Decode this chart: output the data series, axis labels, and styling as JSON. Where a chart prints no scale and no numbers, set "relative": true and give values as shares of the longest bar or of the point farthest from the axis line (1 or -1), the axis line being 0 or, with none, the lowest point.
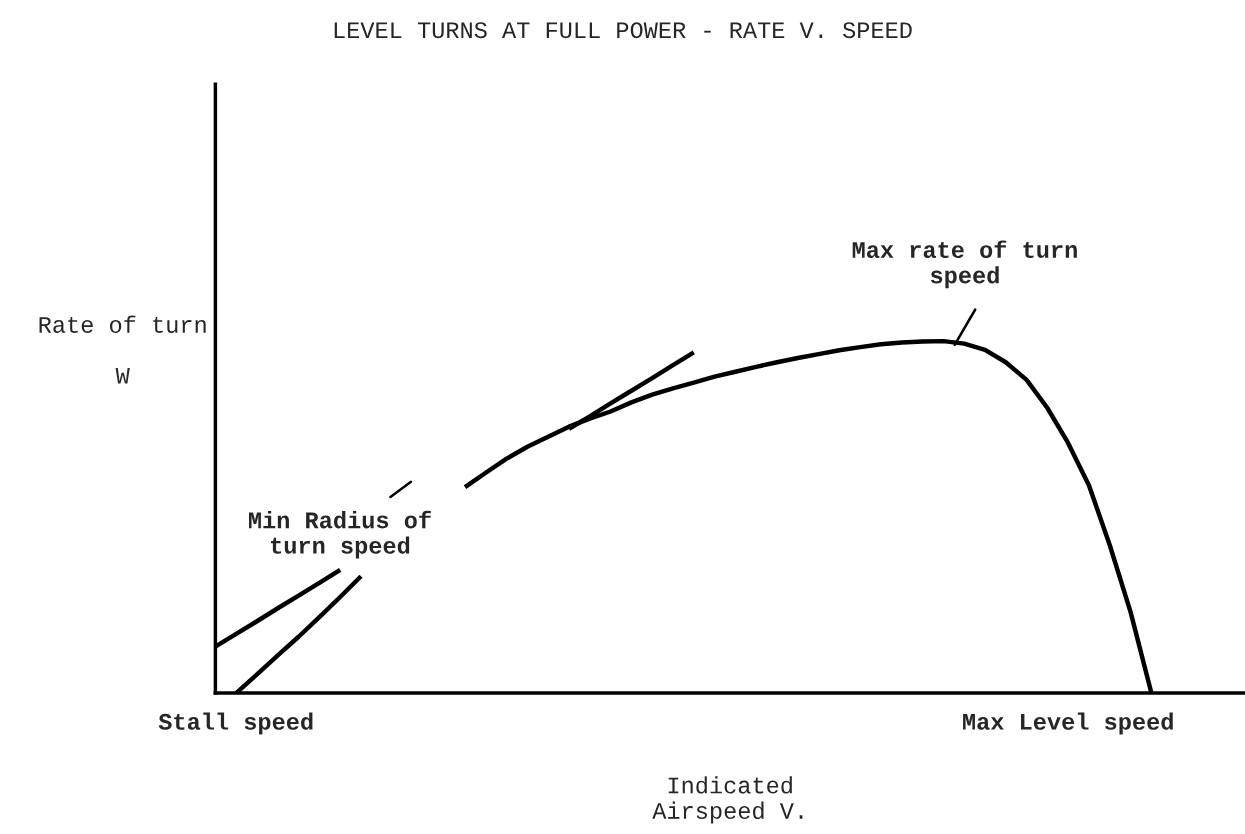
{
  "chart_data": {
    "type": "line",
    "title": "LEVEL TURNS AT FULL POWER - RATE V. SPEED",
    "xlabel": "Indicated\nAirspeed V.",
    "ylabel": "Rate of turn\n\nW",
    "relative": true,
    "grid": false,
    "legend": false,
    "marker": "none",
    "line_style": "solid",
    "categories": [
      null,
      "Stall speed",
      null,
      null,
      null,
      null,
      null,
      null,
      null,
      null,
      null,
      null,
      null,
      null,
      null,
      null,
      null,
      null,
      null,
      null,
      null,
      null,
      null,
      null,
      null,
      null,
      null,
      null,
      null,
      null,
      null,
      null,
      null,
      null,
      null,
      null,
      null,
      null,
      null,
      null,
      null,
      "Max Level speed",
      null,
      null,
      null,
      null,
      null,
      null,
      null,
      null
    ],
    "series": [
      {
        "color": "#000000",
        "values": [
          null,
          0,
          0.053,
          0.107,
          0.16,
          0.216,
          0.273,
          0.332,
          null,
          null,
          null,
          null,
          0.585,
          0.626,
          0.666,
          0.7,
          0.728,
          0.757,
          0.78,
          0.8,
          0.826,
          0.848,
          0.866,
          0.882,
          0.899,
          0.913,
          0.927,
          0.94,
          0.952,
          0.963,
          0.974,
          0.983,
          0.991,
          0.996,
          0.999,
          1.0,
          0.993,
          0.975,
          0.94,
          0.89,
          0.81,
          0.71,
          0.59,
          0.42,
          0.23,
          0,
          null,
          null,
          null,
          null
        ]
      },
      {
        "color": "#000000",
        "values": [
          0.132,
          0.168,
          0.204,
          0.241,
          0.277,
          0.313,
          0.35,
          null,
          null,
          null,
          null,
          null,
          null,
          null,
          null,
          null,
          null,
          0.751,
          0.786,
          0.823,
          0.859,
          0.895,
          0.932,
          0.968,
          null,
          null,
          null,
          null,
          null,
          null,
          null,
          null,
          null,
          null,
          null,
          null,
          null,
          null,
          null,
          null,
          null,
          null,
          null,
          null,
          null,
          null,
          null,
          null,
          null,
          null
        ]
      }
    ],
    "annotations": [
      "Min Radius of\nturn speed",
      "Max rate of turn\nspeed"
    ]
  }
}
